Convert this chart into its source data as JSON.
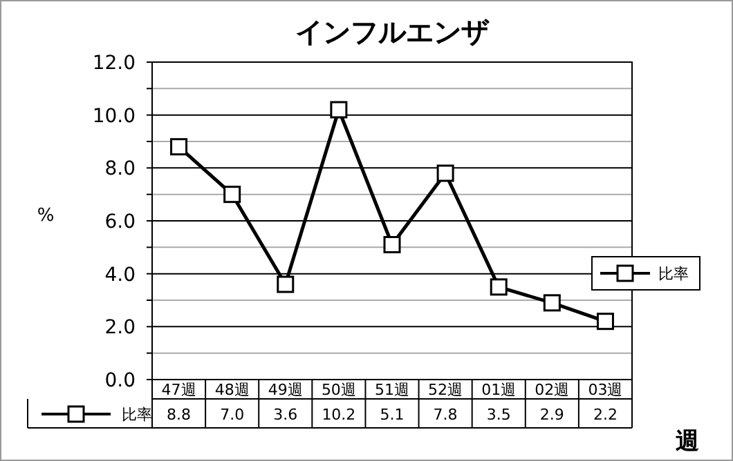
{
  "chart_data": {
    "type": "line",
    "title": "インフルエンザ",
    "ylabel": "%",
    "xlabel": "週",
    "categories": [
      "47週",
      "48週",
      "49週",
      "50週",
      "51週",
      "52週",
      "01週",
      "02週",
      "03週"
    ],
    "series": [
      {
        "name": "比率",
        "color": "#000000",
        "values": [
          8.8,
          7.0,
          3.6,
          10.2,
          5.1,
          7.8,
          3.5,
          2.9,
          2.2
        ],
        "value_labels": [
          "8.8",
          "7.0",
          "3.6",
          "10.2",
          "5.1",
          "7.8",
          "3.5",
          "2.9",
          "2.2"
        ]
      }
    ],
    "ylim": [
      0,
      12
    ],
    "yticks": [
      {
        "value": 0,
        "label": "0.0"
      },
      {
        "value": 1,
        "label": null
      },
      {
        "value": 2,
        "label": "2.0"
      },
      {
        "value": 3,
        "label": null
      },
      {
        "value": 4,
        "label": "4.0"
      },
      {
        "value": 5,
        "label": null
      },
      {
        "value": 6,
        "label": "6.0"
      },
      {
        "value": 7,
        "label": null
      },
      {
        "value": 8,
        "label": "8.0"
      },
      {
        "value": 9,
        "label": null
      },
      {
        "value": 10,
        "label": "10.0"
      },
      {
        "value": 11,
        "label": null
      },
      {
        "value": 12,
        "label": "12.0"
      }
    ],
    "grid": "y",
    "legend": "right",
    "marker": "square",
    "line_style": "solid"
  }
}
